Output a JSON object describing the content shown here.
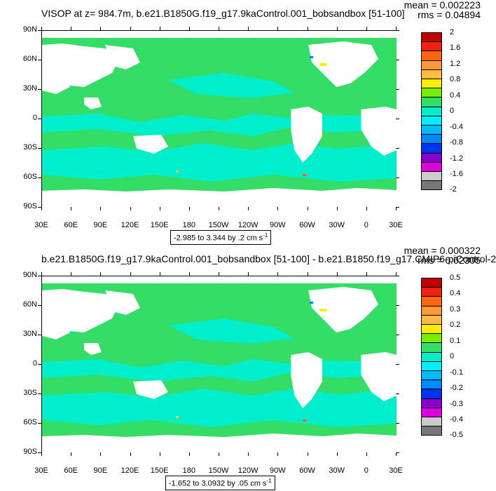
{
  "panels": [
    {
      "title": "VISOP at z= 984.7m, b.e21.B1850G.f19_g17.9kaControl.001_bobsandbox [51-100]",
      "mean": "mean = 0.002223",
      "rms": "rms = 0.04894",
      "contour_info": "-2.985 to 3.344 by .2 cm s",
      "contour_unit_exp": "-1",
      "colorbar": {
        "labels": [
          "2",
          "1.6",
          "1.2",
          "0.8",
          "0.4",
          "0",
          "-0.4",
          "-0.8",
          "-1.2",
          "-1.6",
          "-2"
        ],
        "colors": [
          "#c00000",
          "#ee2211",
          "#ff6611",
          "#ff9933",
          "#ffbb44",
          "#ffee00",
          "#77ee00",
          "#33dd66",
          "#00eecc",
          "#00eeff",
          "#00bbff",
          "#0088ff",
          "#0033ee",
          "#8800cc",
          "#dd00dd",
          "#cccccc",
          "#777777"
        ]
      }
    },
    {
      "title": "b.e21.B1850G.f19_g17.9kaControl.001_bobsandbox [51-100] - b.e21.B1850.f19_g17.CMIP6-piControl-2",
      "mean": "mean = 0.000322",
      "rms": "rms = 0.02305",
      "contour_info": "-1.652 to 3.0932 by .05 cm s",
      "contour_unit_exp": "-1",
      "colorbar": {
        "labels": [
          "0.5",
          "0.4",
          "0.3",
          "0.2",
          "0.1",
          "0",
          "-0.1",
          "-0.2",
          "-0.3",
          "-0.4",
          "-0.5"
        ],
        "colors": [
          "#c00000",
          "#ee2211",
          "#ff6611",
          "#ff9933",
          "#ffbb44",
          "#ffee00",
          "#77ee00",
          "#33dd66",
          "#00eecc",
          "#00eeff",
          "#00bbff",
          "#0088ff",
          "#0033ee",
          "#8800cc",
          "#dd00dd",
          "#cccccc",
          "#777777"
        ]
      }
    }
  ],
  "axes": {
    "lat_labels": [
      "90N",
      "60N",
      "30N",
      "0",
      "30S",
      "60S",
      "90S"
    ],
    "lon_labels": [
      "30E",
      "60E",
      "90E",
      "120E",
      "150E",
      "180",
      "150W",
      "120W",
      "90W",
      "60W",
      "30W",
      "0",
      "30E"
    ]
  },
  "chart_data": [
    {
      "type": "heatmap",
      "title": "VISOP at z= 984.7m, b.e21.B1850G.f19_g17.9kaControl.001_bobsandbox [51-100]",
      "x_ticks": [
        "30E",
        "60E",
        "90E",
        "120E",
        "150E",
        "180",
        "150W",
        "120W",
        "90W",
        "60W",
        "30W",
        "0",
        "30E"
      ],
      "y_ticks": [
        "90N",
        "60N",
        "30N",
        "0",
        "30S",
        "60S",
        "90S"
      ],
      "xlim": [
        30,
        390
      ],
      "ylim": [
        -90,
        90
      ],
      "colorbar_levels": [
        -2,
        -1.6,
        -1.2,
        -0.8,
        -0.4,
        0,
        0.4,
        0.8,
        1.2,
        1.6,
        2
      ],
      "stats": {
        "mean": 0.002223,
        "rms": 0.04894
      },
      "contour_range": {
        "min": -2.985,
        "max": 3.344,
        "interval": 0.2,
        "units": "cm s-1"
      },
      "dominant_value_range": [
        -0.4,
        0.4
      ],
      "grid": false
    },
    {
      "type": "heatmap",
      "title": "b.e21.B1850G.f19_g17.9kaControl.001_bobsandbox [51-100] - b.e21.B1850.f19_g17.CMIP6-piControl-2",
      "x_ticks": [
        "30E",
        "60E",
        "90E",
        "120E",
        "150E",
        "180",
        "150W",
        "120W",
        "90W",
        "60W",
        "30W",
        "0",
        "30E"
      ],
      "y_ticks": [
        "90N",
        "60N",
        "30N",
        "0",
        "30S",
        "60S",
        "90S"
      ],
      "xlim": [
        30,
        390
      ],
      "ylim": [
        -90,
        90
      ],
      "colorbar_levels": [
        -0.5,
        -0.4,
        -0.3,
        -0.2,
        -0.1,
        0,
        0.1,
        0.2,
        0.3,
        0.4,
        0.5
      ],
      "stats": {
        "mean": 0.000322,
        "rms": 0.02305
      },
      "contour_range": {
        "min": -1.652,
        "max": 3.0932,
        "interval": 0.05,
        "units": "cm s-1"
      },
      "dominant_value_range": [
        -0.1,
        0.1
      ],
      "grid": false
    }
  ]
}
